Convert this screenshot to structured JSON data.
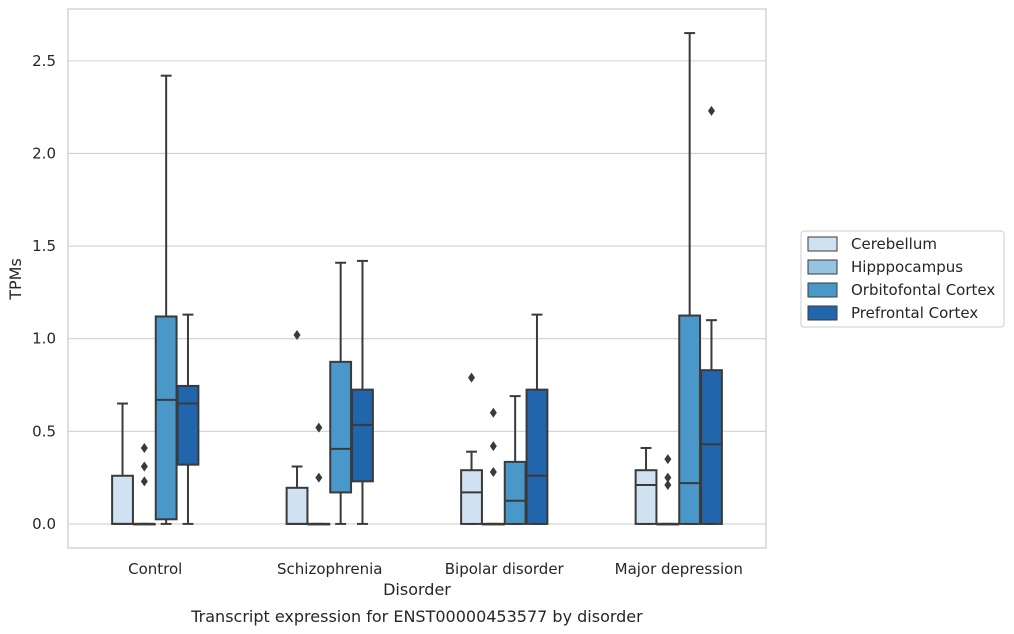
{
  "chart_data": {
    "type": "box",
    "xlabel": "Disorder",
    "ylabel": "TPMs",
    "caption": "Transcript expression for ENST00000453577 by disorder",
    "ylim": [
      -0.13,
      2.78
    ],
    "yticks": [
      "0.0",
      "0.5",
      "1.0",
      "1.5",
      "2.0",
      "2.5"
    ],
    "ytick_values": [
      0,
      0.5,
      1.0,
      1.5,
      2.0,
      2.5
    ],
    "grid": "horizontal",
    "legend_position": "right",
    "categories": [
      "Control",
      "Schizophrenia",
      "Bipolar disorder",
      "Major depression"
    ],
    "series": [
      {
        "name": "Cerebellum",
        "color": "#d0e1f2",
        "boxes": [
          {
            "min": 0,
            "q1": 0,
            "median": 0,
            "q3": 0.26,
            "max": 0.65,
            "outliers": []
          },
          {
            "min": 0,
            "q1": 0,
            "median": 0,
            "q3": 0.195,
            "max": 0.31,
            "outliers": [
              1.02
            ]
          },
          {
            "min": 0,
            "q1": 0,
            "median": 0.17,
            "q3": 0.29,
            "max": 0.39,
            "outliers": [
              0.79
            ]
          },
          {
            "min": 0,
            "q1": 0,
            "median": 0.21,
            "q3": 0.29,
            "max": 0.41,
            "outliers": []
          }
        ]
      },
      {
        "name": "Hipppocampus",
        "color": "#94c4df",
        "boxes": [
          {
            "min": 0,
            "q1": 0,
            "median": 0,
            "q3": 0,
            "max": 0,
            "outliers": [
              0.23,
              0.31,
              0.41
            ]
          },
          {
            "min": 0,
            "q1": 0,
            "median": 0,
            "q3": 0,
            "max": 0,
            "outliers": [
              0.25,
              0.52
            ]
          },
          {
            "min": 0,
            "q1": 0,
            "median": 0,
            "q3": 0,
            "max": 0,
            "outliers": [
              0.28,
              0.42,
              0.6
            ]
          },
          {
            "min": 0,
            "q1": 0,
            "median": 0,
            "q3": 0,
            "max": 0,
            "outliers": [
              0.21,
              0.25,
              0.35
            ]
          }
        ]
      },
      {
        "name": "Orbitofontal Cortex",
        "color": "#4a98c9",
        "boxes": [
          {
            "min": 0,
            "q1": 0.025,
            "median": 0.67,
            "q3": 1.12,
            "max": 2.42,
            "outliers": []
          },
          {
            "min": 0,
            "q1": 0.17,
            "median": 0.405,
            "q3": 0.875,
            "max": 1.41,
            "outliers": []
          },
          {
            "min": 0,
            "q1": 0,
            "median": 0.125,
            "q3": 0.335,
            "max": 0.69,
            "outliers": []
          },
          {
            "min": 0,
            "q1": 0,
            "median": 0.22,
            "q3": 1.125,
            "max": 2.65,
            "outliers": []
          }
        ]
      },
      {
        "name": "Prefrontal Cortex",
        "color": "#2166ac",
        "boxes": [
          {
            "min": 0,
            "q1": 0.32,
            "median": 0.65,
            "q3": 0.745,
            "max": 1.13,
            "outliers": []
          },
          {
            "min": 0,
            "q1": 0.23,
            "median": 0.535,
            "q3": 0.725,
            "max": 1.42,
            "outliers": []
          },
          {
            "min": 0,
            "q1": 0,
            "median": 0.26,
            "q3": 0.725,
            "max": 1.13,
            "outliers": []
          },
          {
            "min": 0,
            "q1": 0,
            "median": 0.43,
            "q3": 0.83,
            "max": 1.1,
            "outliers": [
              2.23
            ]
          }
        ]
      }
    ]
  }
}
